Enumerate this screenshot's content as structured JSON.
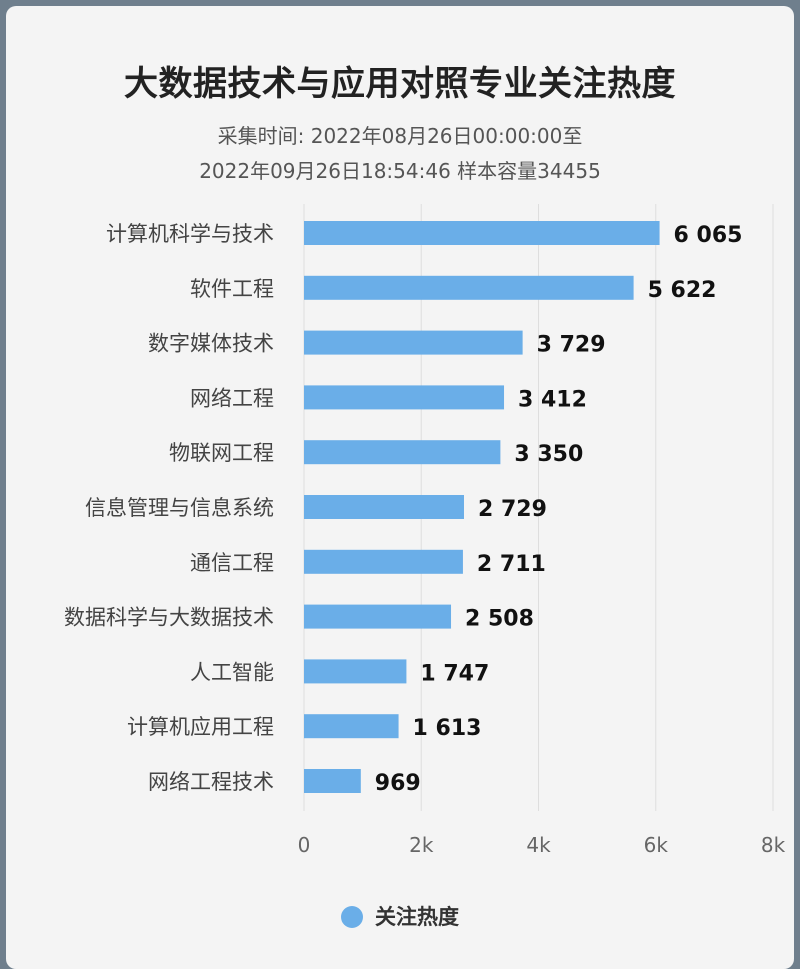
{
  "chart_data": {
    "type": "bar",
    "orientation": "horizontal",
    "title": "大数据技术与应用对照专业关注热度",
    "subtitle_lines": [
      "采集时间: 2022年08月26日00:00:00至",
      "2022年09月26日18:54:46 样本容量34455"
    ],
    "categories": [
      "计算机科学与技术",
      "软件工程",
      "数字媒体技术",
      "网络工程",
      "物联网工程",
      "信息管理与信息系统",
      "通信工程",
      "数据科学与大数据技术",
      "人工智能",
      "计算机应用工程",
      "网络工程技术"
    ],
    "series": [
      {
        "name": "关注热度",
        "values": [
          6065,
          5622,
          3729,
          3412,
          3350,
          2729,
          2711,
          2508,
          1747,
          1613,
          969
        ],
        "labels": [
          "6 065",
          "5 622",
          "3 729",
          "3 412",
          "3 350",
          "2 729",
          "2 711",
          "2 508",
          "1 747",
          "1 613",
          "969"
        ]
      }
    ],
    "xlim": [
      0,
      8000
    ],
    "xticks": [
      0,
      2000,
      4000,
      6000,
      8000
    ],
    "xtick_labels": [
      "0",
      "2k",
      "4k",
      "6k",
      "8k"
    ],
    "grid": "vertical",
    "legend": "bottom-center",
    "bar_color": "#6aaee8"
  }
}
